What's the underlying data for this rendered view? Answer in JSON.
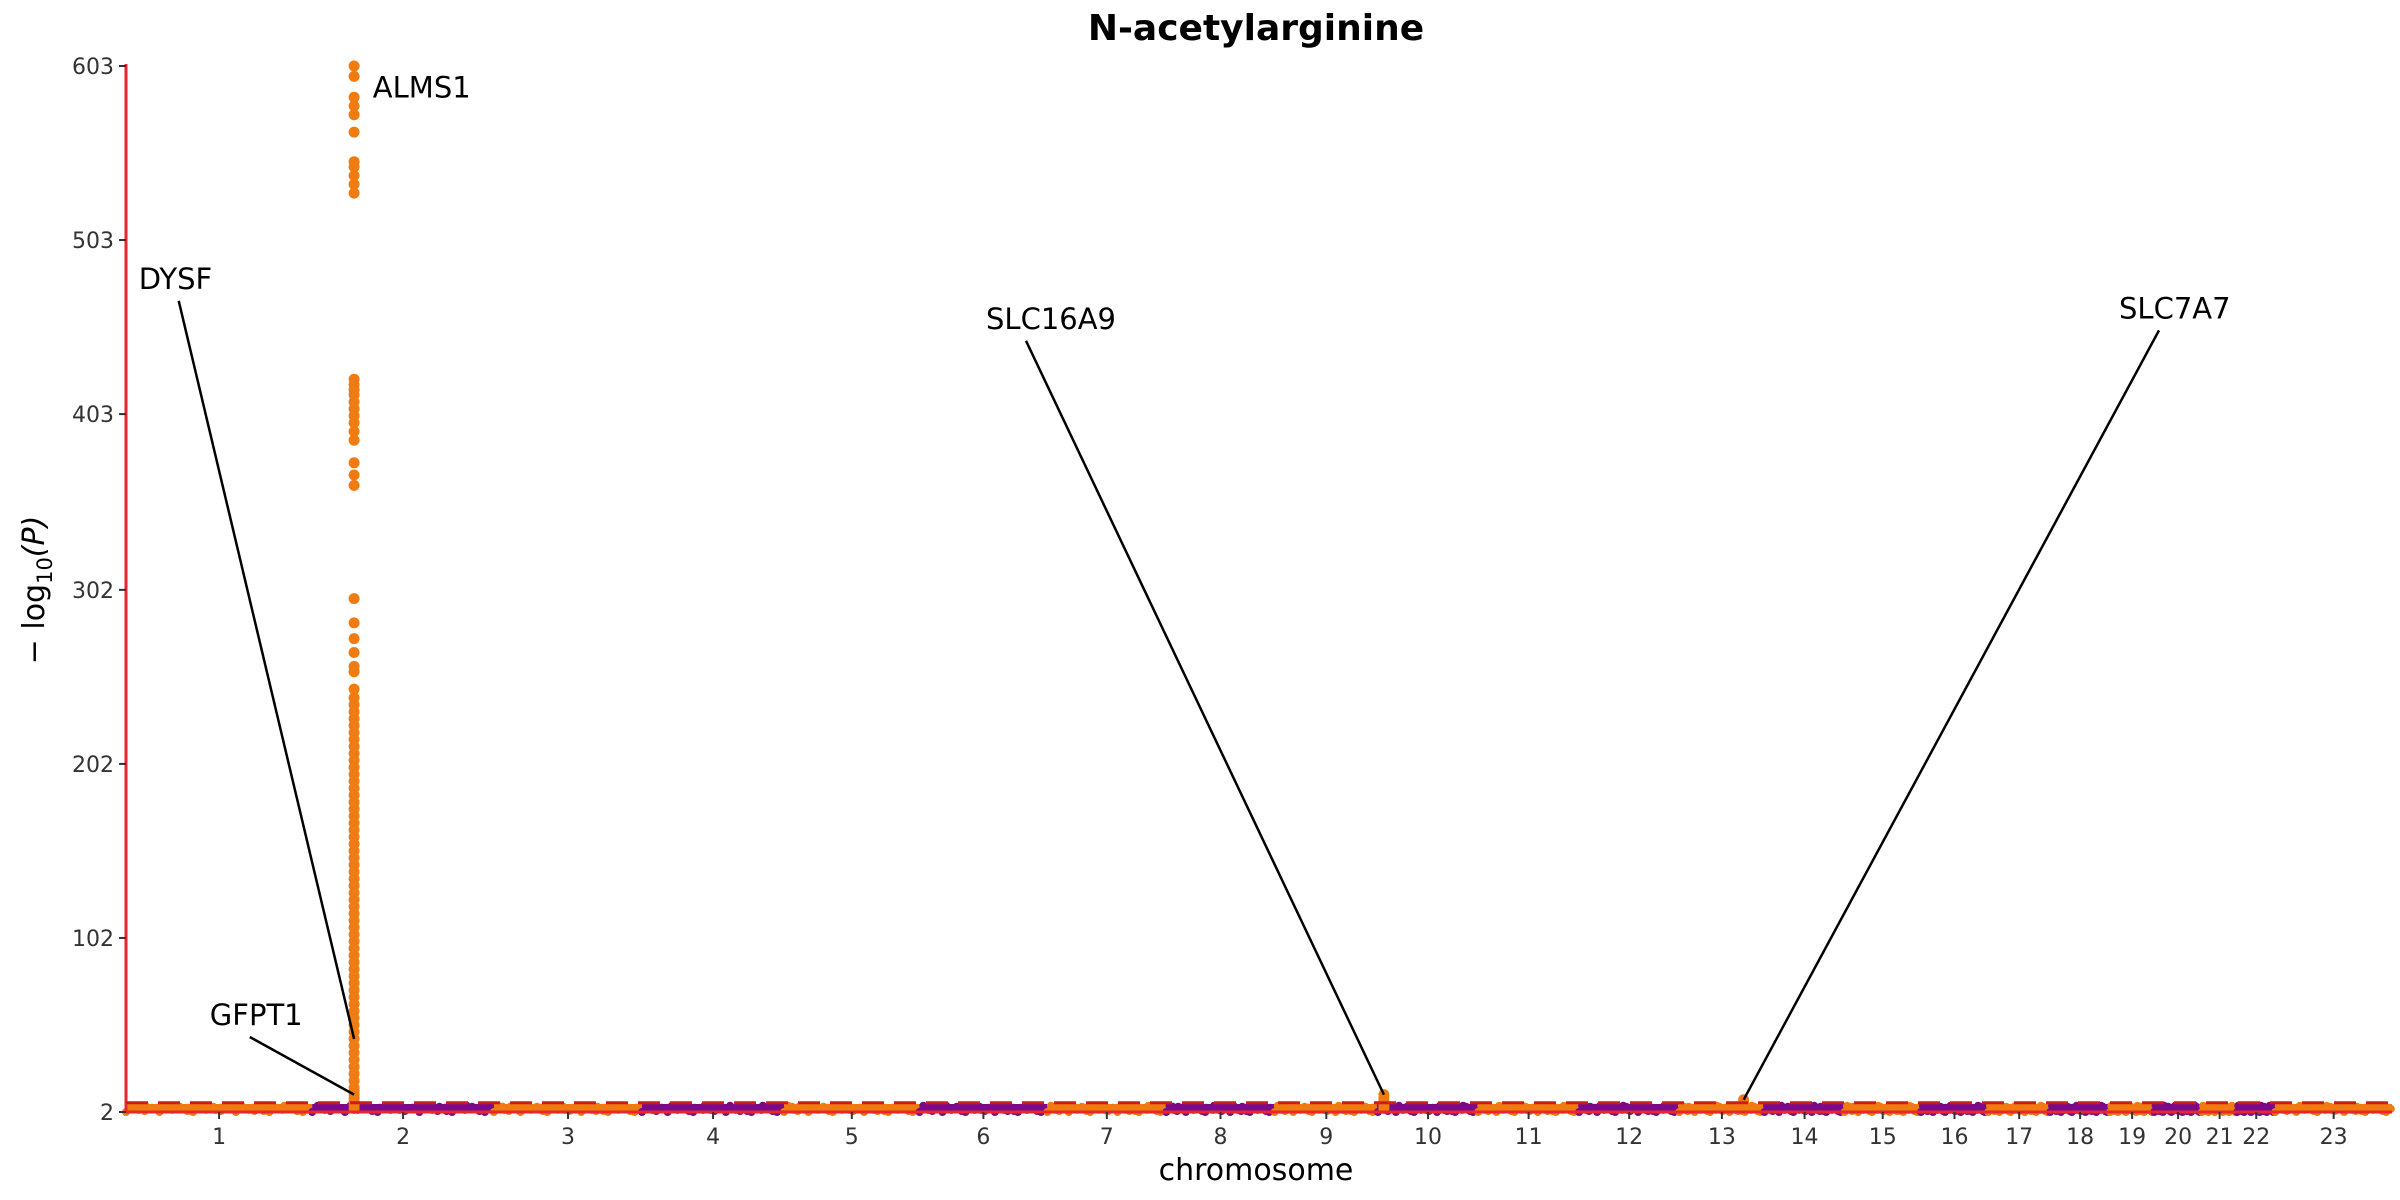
{
  "chart_data": {
    "type": "scatter",
    "subtype": "manhattan",
    "title": "N-acetylarginine",
    "xlabel": "chromosome",
    "ylabel_prefix": "− log",
    "ylabel_subscript": "10",
    "ylabel_suffix": "(P)",
    "ylim": [
      2,
      603
    ],
    "yticks": [
      2,
      102,
      202,
      302,
      403,
      503,
      603
    ],
    "threshold_line_value": 7.3,
    "colors": {
      "odd_chromosome": "#f07b10",
      "even_chromosome": "#7a0a8a",
      "axis_y": "#e8262b",
      "axis_x": "#e8262b",
      "threshold": "#d11a1a",
      "leader": "#000000"
    },
    "chromosomes": [
      {
        "label": "1",
        "start": 0,
        "end": 249
      },
      {
        "label": "2",
        "start": 249,
        "end": 492
      },
      {
        "label": "3",
        "start": 492,
        "end": 690
      },
      {
        "label": "4",
        "start": 690,
        "end": 880
      },
      {
        "label": "5",
        "start": 880,
        "end": 1061
      },
      {
        "label": "6",
        "start": 1061,
        "end": 1232
      },
      {
        "label": "7",
        "start": 1232,
        "end": 1391
      },
      {
        "label": "8",
        "start": 1391,
        "end": 1536
      },
      {
        "label": "9",
        "start": 1536,
        "end": 1674
      },
      {
        "label": "10",
        "start": 1674,
        "end": 1808
      },
      {
        "label": "11",
        "start": 1808,
        "end": 1943
      },
      {
        "label": "12",
        "start": 1943,
        "end": 2077
      },
      {
        "label": "13",
        "start": 2077,
        "end": 2191
      },
      {
        "label": "14",
        "start": 2191,
        "end": 2298
      },
      {
        "label": "15",
        "start": 2298,
        "end": 2400
      },
      {
        "label": "16",
        "start": 2400,
        "end": 2490
      },
      {
        "label": "17",
        "start": 2490,
        "end": 2573
      },
      {
        "label": "18",
        "start": 2573,
        "end": 2653
      },
      {
        "label": "19",
        "start": 2653,
        "end": 2712
      },
      {
        "label": "20",
        "start": 2712,
        "end": 2776
      },
      {
        "label": "21",
        "start": 2776,
        "end": 2823
      },
      {
        "label": "22",
        "start": 2823,
        "end": 2874
      },
      {
        "label": "23",
        "start": 2874,
        "end": 3030
      }
    ],
    "peak_series": [
      {
        "name": "ALMS1 locus",
        "x": 305,
        "y": [
          603,
          597,
          585,
          580,
          575,
          565,
          548,
          545,
          540,
          535,
          530,
          423,
          420,
          417,
          414,
          410,
          406,
          402,
          398,
          393,
          388,
          375,
          368,
          362,
          297,
          283,
          274,
          266,
          258,
          255,
          245,
          240,
          236,
          232,
          228,
          224,
          220,
          216,
          212,
          208,
          204,
          200,
          196,
          192,
          188,
          184,
          180,
          176,
          172,
          168,
          164,
          160,
          156,
          152,
          148,
          144,
          140,
          136,
          132,
          128,
          124,
          120,
          116,
          112,
          108,
          104,
          100,
          96,
          92,
          88,
          84,
          80,
          76,
          72,
          68,
          64,
          60,
          56,
          52,
          48,
          44,
          40,
          36,
          32,
          28,
          24,
          20,
          16,
          14,
          12,
          10,
          8,
          6,
          4
        ]
      },
      {
        "name": "SLC16A9 locus",
        "x": 1682,
        "y": [
          12,
          10,
          8,
          6,
          5,
          4
        ]
      },
      {
        "name": "SLC7A7 locus",
        "x": 2163,
        "y": [
          9,
          7,
          6,
          5,
          4
        ]
      }
    ],
    "annotations": [
      {
        "label": "ALMS1",
        "point_x": 305,
        "point_y": 585,
        "text_x": 330,
        "text_y": 585,
        "leader": false
      },
      {
        "label": "DYSF",
        "point_x": 305,
        "point_y": 44,
        "text_x": 17,
        "text_y": 475,
        "leader": true
      },
      {
        "label": "GFPT1",
        "point_x": 305,
        "point_y": 12,
        "text_x": 112,
        "text_y": 52,
        "leader": true
      },
      {
        "label": "SLC16A9",
        "point_x": 1682,
        "point_y": 12,
        "text_x": 1150,
        "text_y": 452,
        "leader": true
      },
      {
        "label": "SLC7A7",
        "point_x": 2163,
        "point_y": 9,
        "text_x": 2665,
        "text_y": 458,
        "leader": true
      }
    ]
  }
}
